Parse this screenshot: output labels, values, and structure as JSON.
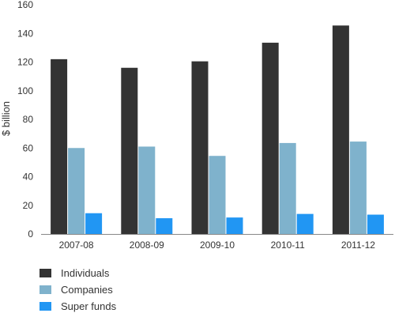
{
  "chart_data": {
    "type": "bar",
    "title": "",
    "xlabel": "",
    "ylabel": "$ billion",
    "ylim": [
      0,
      160
    ],
    "yticks": [
      0,
      20,
      40,
      60,
      80,
      100,
      120,
      140,
      160
    ],
    "grid": false,
    "legend_position": "bottom-left",
    "categories": [
      "2007-08",
      "2008-09",
      "2009-10",
      "2010-11",
      "2011-12"
    ],
    "series": [
      {
        "name": "Individuals",
        "color": "#333333",
        "values": [
          122,
          116,
          120.5,
          133.5,
          145.5
        ]
      },
      {
        "name": "Companies",
        "color": "#7fb2cc",
        "values": [
          60,
          61,
          54.5,
          63.5,
          64.5
        ]
      },
      {
        "name": "Super funds",
        "color": "#2196f3",
        "values": [
          14.5,
          11,
          11.5,
          14,
          13.5
        ]
      }
    ]
  }
}
